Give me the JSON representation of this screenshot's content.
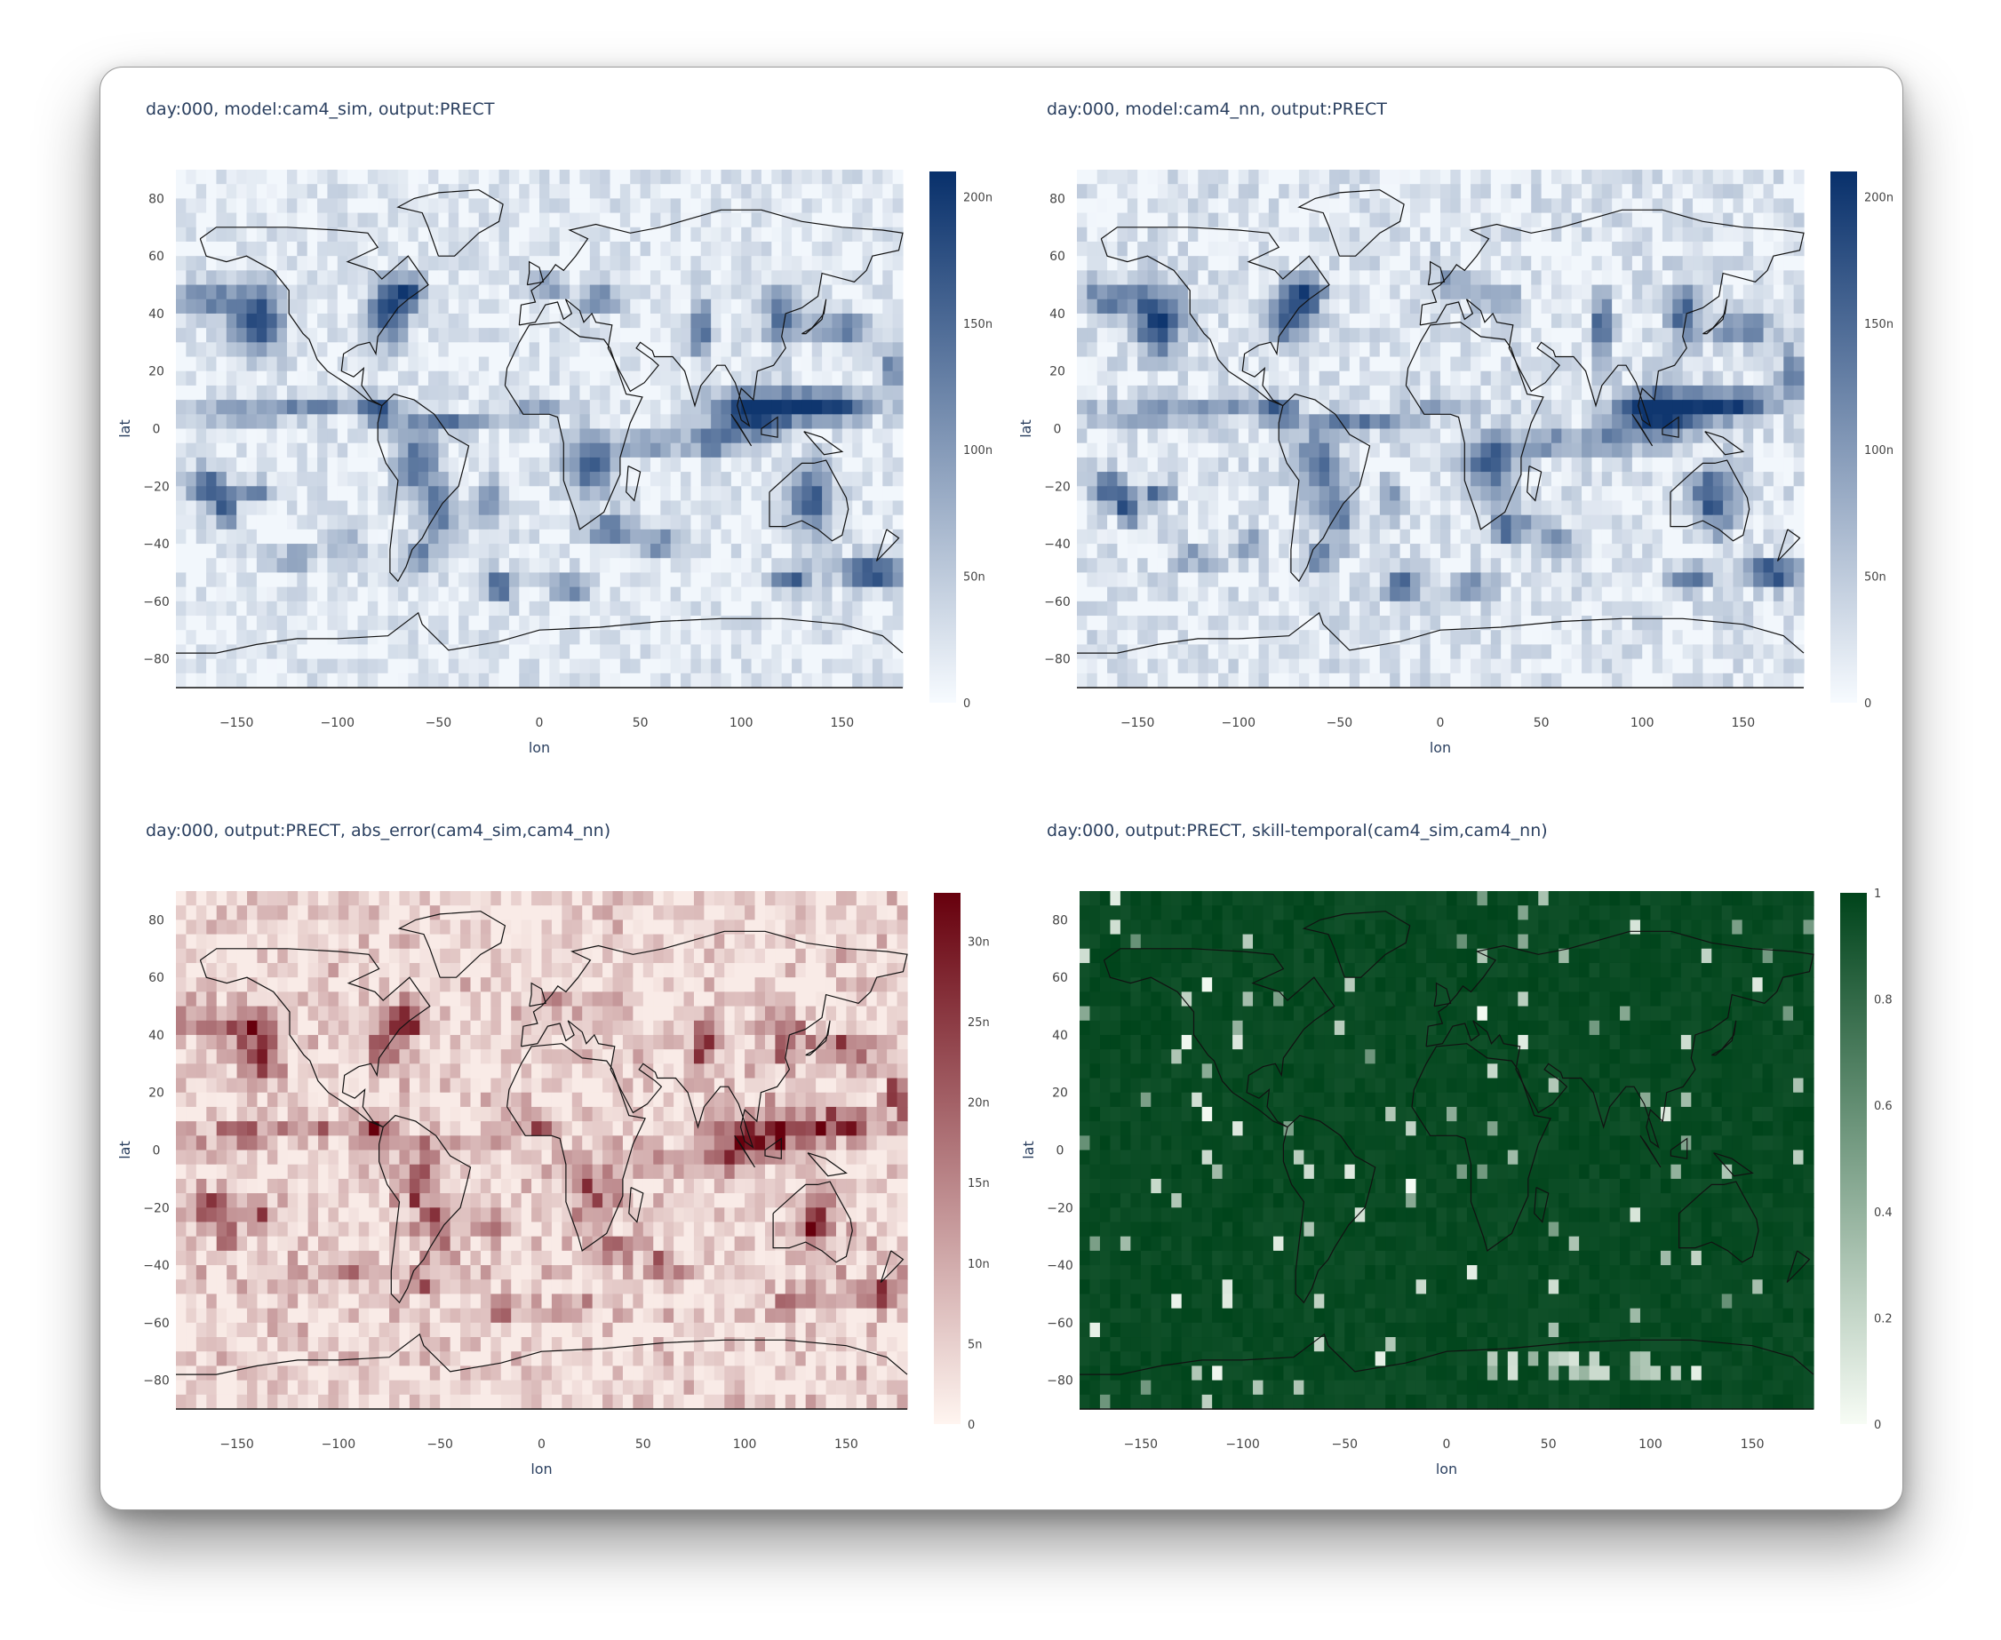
{
  "chart_data": [
    {
      "type": "heatmap",
      "title": "day:000, model:cam4_sim, output:PRECT",
      "xlabel": "lon",
      "ylabel": "lat",
      "xlim": [
        -180,
        180
      ],
      "ylim": [
        -90,
        90
      ],
      "xticks": [
        -150,
        -100,
        -50,
        0,
        50,
        100,
        150
      ],
      "yticks": [
        80,
        60,
        40,
        20,
        0,
        -20,
        -40,
        -60,
        -80
      ],
      "colorscale": "Blues",
      "colors": [
        "#f7fbff",
        "#08306b"
      ],
      "colorbar": {
        "range": [
          0,
          210
        ],
        "ticks": [
          0,
          50,
          100,
          150,
          200
        ],
        "ticklabels": [
          "0",
          "50n",
          "100n",
          "150n",
          "200n"
        ]
      }
    },
    {
      "type": "heatmap",
      "title": "day:000, model:cam4_nn, output:PRECT",
      "xlabel": "lon",
      "ylabel": "lat",
      "xlim": [
        -180,
        180
      ],
      "ylim": [
        -90,
        90
      ],
      "xticks": [
        -150,
        -100,
        -50,
        0,
        50,
        100,
        150
      ],
      "yticks": [
        80,
        60,
        40,
        20,
        0,
        -20,
        -40,
        -60,
        -80
      ],
      "colorscale": "Blues",
      "colors": [
        "#f7fbff",
        "#08306b"
      ],
      "colorbar": {
        "range": [
          0,
          210
        ],
        "ticks": [
          0,
          50,
          100,
          150,
          200
        ],
        "ticklabels": [
          "0",
          "50n",
          "100n",
          "150n",
          "200n"
        ]
      }
    },
    {
      "type": "heatmap",
      "title": "day:000, output:PRECT, abs_error(cam4_sim,cam4_nn)",
      "xlabel": "lon",
      "ylabel": "lat",
      "xlim": [
        -180,
        180
      ],
      "ylim": [
        -90,
        90
      ],
      "xticks": [
        -150,
        -100,
        -50,
        0,
        50,
        100,
        150
      ],
      "yticks": [
        80,
        60,
        40,
        20,
        0,
        -20,
        -40,
        -60,
        -80
      ],
      "colorscale": "Reds",
      "colors": [
        "#fff5f0",
        "#67000d"
      ],
      "colorbar": {
        "range": [
          0,
          33
        ],
        "ticks": [
          0,
          5,
          10,
          15,
          20,
          25,
          30
        ],
        "ticklabels": [
          "0",
          "5n",
          "10n",
          "15n",
          "20n",
          "25n",
          "30n"
        ]
      }
    },
    {
      "type": "heatmap",
      "title": "day:000, output:PRECT, skill-temporal(cam4_sim,cam4_nn)",
      "xlabel": "lon",
      "ylabel": "lat",
      "xlim": [
        -180,
        180
      ],
      "ylim": [
        -90,
        90
      ],
      "xticks": [
        -150,
        -100,
        -50,
        0,
        50,
        100,
        150
      ],
      "yticks": [
        80,
        60,
        40,
        20,
        0,
        -20,
        -40,
        -60,
        -80
      ],
      "colorscale": "Greens",
      "colors": [
        "#f7fcf5",
        "#00441b"
      ],
      "colorbar": {
        "range": [
          0,
          1
        ],
        "ticks": [
          0,
          0.2,
          0.4,
          0.6,
          0.8,
          1
        ],
        "ticklabels": [
          "0",
          "0.2",
          "0.4",
          "0.6",
          "0.8",
          "1"
        ]
      }
    }
  ]
}
